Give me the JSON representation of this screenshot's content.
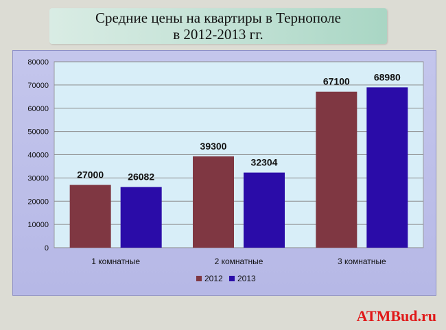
{
  "chart_data": {
    "type": "bar",
    "title_line1": "Средние цены на квартиры в Тернополе",
    "title_line2": "в 2012-2013 гг.",
    "categories": [
      "1 комнатные",
      "2 комнатные",
      "3 комнатные"
    ],
    "series": [
      {
        "name": "2012",
        "values": [
          27000,
          39300,
          67100
        ],
        "color": "#7f3742"
      },
      {
        "name": "2013",
        "values": [
          26082,
          32304,
          68980
        ],
        "color": "#2a0ca8"
      }
    ],
    "ylim": [
      0,
      80000
    ],
    "yticks": [
      0,
      10000,
      20000,
      30000,
      40000,
      50000,
      60000,
      70000,
      80000
    ],
    "grid": true,
    "legend": "bottom"
  },
  "colors": {
    "plot_bg": "#d8eef8",
    "frame_bg": "#bcbeea"
  },
  "watermark": "ATMBud.ru"
}
